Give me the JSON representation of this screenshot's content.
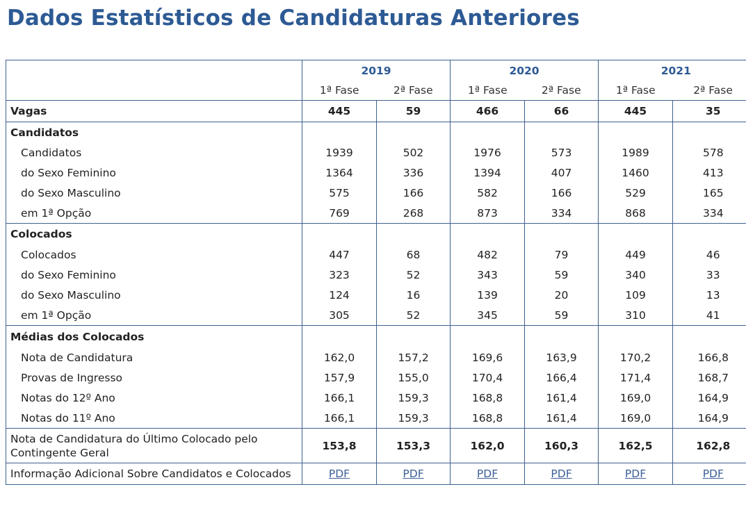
{
  "title": "Dados Estatísticos de Candidaturas Anteriores",
  "years": [
    "2019",
    "2020",
    "2021"
  ],
  "phases": [
    "1ª Fase",
    "2ª Fase",
    "1ª Fase",
    "2ª Fase",
    "1ª Fase",
    "2ª Fase"
  ],
  "vagas": {
    "label": "Vagas",
    "values": [
      "445",
      "59",
      "466",
      "66",
      "445",
      "35"
    ]
  },
  "candidatos": {
    "heading": "Candidatos",
    "rows": [
      {
        "label": "Candidatos",
        "values": [
          "1939",
          "502",
          "1976",
          "573",
          "1989",
          "578"
        ]
      },
      {
        "label": "do Sexo Feminino",
        "values": [
          "1364",
          "336",
          "1394",
          "407",
          "1460",
          "413"
        ]
      },
      {
        "label": "do Sexo Masculino",
        "values": [
          "575",
          "166",
          "582",
          "166",
          "529",
          "165"
        ]
      },
      {
        "label": "em 1ª Opção",
        "values": [
          "769",
          "268",
          "873",
          "334",
          "868",
          "334"
        ]
      }
    ]
  },
  "colocados": {
    "heading": "Colocados",
    "rows": [
      {
        "label": "Colocados",
        "values": [
          "447",
          "68",
          "482",
          "79",
          "449",
          "46"
        ]
      },
      {
        "label": "do Sexo Feminino",
        "values": [
          "323",
          "52",
          "343",
          "59",
          "340",
          "33"
        ]
      },
      {
        "label": "do Sexo Masculino",
        "values": [
          "124",
          "16",
          "139",
          "20",
          "109",
          "13"
        ]
      },
      {
        "label": "em 1ª Opção",
        "values": [
          "305",
          "52",
          "345",
          "59",
          "310",
          "41"
        ]
      }
    ]
  },
  "medias": {
    "heading": "Médias dos Colocados",
    "rows": [
      {
        "label": "Nota de Candidatura",
        "values": [
          "162,0",
          "157,2",
          "169,6",
          "163,9",
          "170,2",
          "166,8"
        ]
      },
      {
        "label": "Provas de Ingresso",
        "values": [
          "157,9",
          "155,0",
          "170,4",
          "166,4",
          "171,4",
          "168,7"
        ]
      },
      {
        "label": "Notas do 12º Ano",
        "values": [
          "166,1",
          "159,3",
          "168,8",
          "161,4",
          "169,0",
          "164,9"
        ]
      },
      {
        "label": "Notas do 11º Ano",
        "values": [
          "166,1",
          "159,3",
          "168,8",
          "161,4",
          "169,0",
          "164,9"
        ]
      }
    ]
  },
  "ultimo": {
    "label": "Nota de Candidatura do Último Colocado pelo Contingente Geral",
    "values": [
      "153,8",
      "153,3",
      "162,0",
      "160,3",
      "162,5",
      "162,8"
    ]
  },
  "info": {
    "label": "Informação Adicional Sobre Candidatos e Colocados",
    "links": [
      "PDF",
      "PDF",
      "PDF",
      "PDF",
      "PDF",
      "PDF"
    ]
  },
  "colors": {
    "title": "#2d5a94",
    "border": "#3d5f8f",
    "link": "#3b5e9a"
  }
}
